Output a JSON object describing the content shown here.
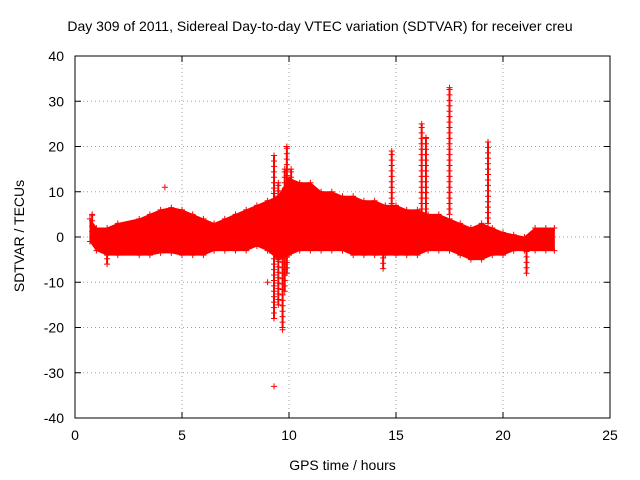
{
  "chart_data": {
    "type": "scatter",
    "title": "Day 309 of 2011, Sidereal Day-to-day VTEC variation (SDTVAR) for receiver creu",
    "xlabel": "GPS time / hours",
    "ylabel": "SDTVAR / TECUs",
    "xlim": [
      0,
      25
    ],
    "ylim": [
      -40,
      40
    ],
    "xticks": [
      0,
      5,
      10,
      15,
      20,
      25
    ],
    "yticks": [
      -40,
      -30,
      -20,
      -10,
      0,
      10,
      20,
      30,
      40
    ],
    "grid": true,
    "marker": "+",
    "color": "#ff0000",
    "series": [
      {
        "name": "SDTVAR",
        "band": {
          "x": [
            0.7,
            1.0,
            1.5,
            2.0,
            3.0,
            3.5,
            4.0,
            4.5,
            5.0,
            5.5,
            6.0,
            6.5,
            7.0,
            7.5,
            8.0,
            8.5,
            9.0,
            9.5,
            10.0,
            10.5,
            11.0,
            11.5,
            12.0,
            12.5,
            13.0,
            13.5,
            14.0,
            14.5,
            15.0,
            15.5,
            16.0,
            16.5,
            17.0,
            17.5,
            18.0,
            18.5,
            19.0,
            19.5,
            20.0,
            20.5,
            21.0,
            21.5,
            22.0,
            22.4
          ],
          "upper": [
            4,
            2,
            2,
            3,
            4,
            5,
            6,
            6.5,
            6,
            5,
            4,
            3,
            4,
            5,
            6,
            7,
            8,
            9,
            13,
            12,
            12,
            10,
            10,
            9,
            9,
            8,
            8,
            7,
            7,
            6,
            6,
            5,
            5,
            4,
            3,
            2,
            3,
            2,
            1,
            0.5,
            0,
            2,
            2,
            2
          ],
          "lower": [
            -1,
            -3,
            -4,
            -4,
            -4,
            -4,
            -3.5,
            -3.5,
            -4,
            -4,
            -4,
            -3,
            -3,
            -3,
            -3,
            -2,
            -3,
            -5,
            -4,
            -3,
            -3,
            -3,
            -3,
            -3,
            -4,
            -4,
            -4,
            -4,
            -4,
            -4,
            -4,
            -3,
            -3,
            -3,
            -4,
            -5,
            -5,
            -4,
            -4,
            -3,
            -3,
            -3,
            -3,
            -3
          ]
        },
        "spikes": [
          {
            "x": 0.8,
            "min": 0,
            "max": 5
          },
          {
            "x": 1.5,
            "min": -6,
            "max": 0
          },
          {
            "x": 9.3,
            "min": -18,
            "max": 18
          },
          {
            "x": 9.5,
            "min": -15,
            "max": 12
          },
          {
            "x": 9.7,
            "min": -20,
            "max": 2
          },
          {
            "x": 9.8,
            "min": -12,
            "max": 15
          },
          {
            "x": 9.9,
            "min": -8,
            "max": 20
          },
          {
            "x": 10.1,
            "min": 0,
            "max": 15
          },
          {
            "x": 14.4,
            "min": -7,
            "max": 2
          },
          {
            "x": 14.8,
            "min": 5,
            "max": 19
          },
          {
            "x": 16.2,
            "min": 5,
            "max": 25
          },
          {
            "x": 16.4,
            "min": 5,
            "max": 22
          },
          {
            "x": 17.5,
            "min": 5,
            "max": 33
          },
          {
            "x": 19.3,
            "min": 3,
            "max": 21
          },
          {
            "x": 21.1,
            "min": -8,
            "max": -2
          }
        ],
        "points": [
          {
            "x": 4.2,
            "y": 11
          },
          {
            "x": 9.0,
            "y": -10
          },
          {
            "x": 9.3,
            "y": -33
          },
          {
            "x": 9.7,
            "y": -20.5
          },
          {
            "x": 9.1,
            "y": -3
          }
        ]
      }
    ]
  }
}
